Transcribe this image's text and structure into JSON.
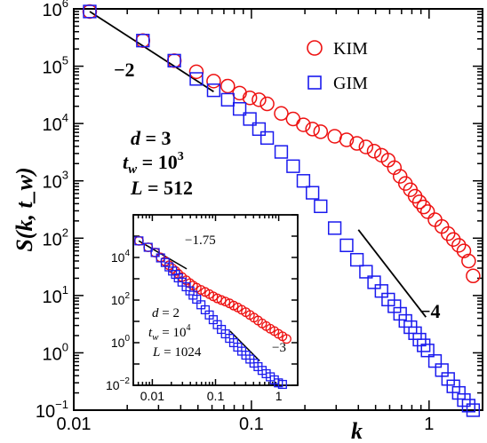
{
  "chart_data": [
    {
      "type": "scatter",
      "scale": "log-log",
      "xlabel": "k",
      "ylabel": "S(k, t_w)",
      "xlim": [
        0.01,
        2
      ],
      "ylim": [
        0.1,
        1000000
      ],
      "x_ticks": [
        "0.01",
        "0.1",
        "1"
      ],
      "y_ticks": [
        {
          "base": "10",
          "exp": "-1"
        },
        {
          "base": "10",
          "exp": "0"
        },
        {
          "base": "10",
          "exp": "1"
        },
        {
          "base": "10",
          "exp": "2"
        },
        {
          "base": "10",
          "exp": "3"
        },
        {
          "base": "10",
          "exp": "4"
        },
        {
          "base": "10",
          "exp": "5"
        },
        {
          "base": "10",
          "exp": "6"
        }
      ],
      "legend": {
        "placement": "top-right"
      },
      "params": [
        "d = 3",
        "t_w = 10^3",
        "L = 512"
      ],
      "params_display": [
        {
          "lhs": "d",
          "rhs": "3"
        },
        {
          "lhs": "t",
          "sub": "w",
          "rhs": "10",
          "sup": "3"
        },
        {
          "lhs": "L",
          "rhs": "512"
        }
      ],
      "series": [
        {
          "name": "KIM",
          "marker": "circle",
          "color": "#ee1111",
          "x": [
            0.0123,
            0.0245,
            0.0368,
            0.049,
            0.0613,
            0.0736,
            0.0858,
            0.098,
            0.1103,
            0.1226,
            0.1472,
            0.1717,
            0.1962,
            0.2208,
            0.2453,
            0.2943,
            0.3434,
            0.3925,
            0.4415,
            0.4906,
            0.5397,
            0.5888,
            0.6379,
            0.687,
            0.736,
            0.785,
            0.834,
            0.883,
            0.932,
            0.981,
            1.08,
            1.18,
            1.28,
            1.37,
            1.47,
            1.57,
            1.67,
            1.77
          ],
          "y": [
            900000,
            280000,
            125000,
            80000,
            55000,
            45000,
            34000,
            28000,
            26000,
            22000,
            15000,
            12000,
            9500,
            8000,
            7200,
            6000,
            5200,
            4500,
            3900,
            3300,
            2800,
            2300,
            1700,
            1200,
            900,
            700,
            540,
            430,
            350,
            290,
            210,
            160,
            120,
            95,
            75,
            60,
            40,
            22
          ]
        },
        {
          "name": "GIM",
          "marker": "square",
          "color": "#1a1aee",
          "x": [
            0.0123,
            0.0245,
            0.0368,
            0.049,
            0.0613,
            0.0736,
            0.0858,
            0.098,
            0.1103,
            0.1226,
            0.1472,
            0.1717,
            0.1962,
            0.2208,
            0.2453,
            0.2943,
            0.3434,
            0.3925,
            0.4415,
            0.4906,
            0.5397,
            0.5888,
            0.6379,
            0.687,
            0.736,
            0.785,
            0.834,
            0.883,
            0.932,
            0.981,
            1.08,
            1.18,
            1.28,
            1.37,
            1.47,
            1.57,
            1.67,
            1.77
          ],
          "y": [
            900000,
            280000,
            125000,
            60000,
            38000,
            26000,
            18000,
            12000,
            8000,
            5600,
            3200,
            1800,
            1000,
            620,
            360,
            150,
            75,
            42,
            26,
            17,
            12,
            8.5,
            6.5,
            4.8,
            3.6,
            2.8,
            2.2,
            1.7,
            1.35,
            1.1,
            0.72,
            0.5,
            0.35,
            0.26,
            0.2,
            0.15,
            0.12,
            0.1
          ]
        }
      ],
      "reference_lines": [
        {
          "label": "−2",
          "slope": -2,
          "x": [
            0.0123,
            0.0613
          ],
          "y": [
            900000,
            36000
          ]
        },
        {
          "label": "−4",
          "slope": -4,
          "x": [
            0.4,
            0.96
          ],
          "y": [
            140,
            4.2
          ]
        }
      ]
    },
    {
      "type": "scatter",
      "scale": "log-log",
      "position_description": "inset, lower-left",
      "xlim": [
        0.005,
        2
      ],
      "ylim": [
        0.01,
        1000000
      ],
      "x_ticks": [
        "0.01",
        "0.1",
        "1"
      ],
      "y_ticks": [
        {
          "base": "10",
          "exp": "-2"
        },
        {
          "base": "10",
          "exp": "0"
        },
        {
          "base": "10",
          "exp": "2"
        },
        {
          "base": "10",
          "exp": "4"
        }
      ],
      "params": [
        "d = 2",
        "t_w = 10^4",
        "L = 1024"
      ],
      "params_display": [
        {
          "lhs": "d",
          "rhs": "2"
        },
        {
          "lhs": "t",
          "sub": "w",
          "rhs": "10",
          "sup": "4"
        },
        {
          "lhs": "L",
          "rhs": "1024"
        }
      ],
      "series": [
        {
          "name": "KIM",
          "marker": "circle",
          "color": "#ee1111",
          "x": [
            0.00614,
            0.0086,
            0.0111,
            0.0135,
            0.016,
            0.0184,
            0.0209,
            0.0233,
            0.0258,
            0.0295,
            0.0344,
            0.0393,
            0.0442,
            0.0503,
            0.0589,
            0.0687,
            0.0798,
            0.092,
            0.1069,
            0.1239,
            0.1436,
            0.1669,
            0.1939,
            0.2246,
            0.2602,
            0.3019,
            0.3509,
            0.4062,
            0.4713,
            0.5473,
            0.6347,
            0.7363,
            0.8538,
            0.9898,
            1.1479,
            1.3318
          ],
          "y": [
            60000,
            30000,
            17000,
            10000,
            6500,
            4300,
            3000,
            2300,
            1700,
            1200,
            850,
            620,
            480,
            380,
            300,
            240,
            190,
            150,
            120,
            100,
            85,
            70,
            55,
            45,
            35,
            27,
            20,
            15,
            11,
            8,
            6,
            4.5,
            3.5,
            2.6,
            2.0,
            1.5
          ]
        },
        {
          "name": "GIM",
          "marker": "square",
          "color": "#1a1aee",
          "x": [
            0.00614,
            0.0086,
            0.0111,
            0.0135,
            0.016,
            0.0184,
            0.0209,
            0.0233,
            0.0258,
            0.0295,
            0.0344,
            0.0393,
            0.0442,
            0.0503,
            0.0589,
            0.0687,
            0.0798,
            0.092,
            0.1069,
            0.1239,
            0.1436,
            0.1669,
            0.1939,
            0.2246,
            0.2602,
            0.3019,
            0.3509,
            0.4062,
            0.4713,
            0.5473,
            0.6347,
            0.7363,
            0.8538,
            0.9898,
            1.1479
          ],
          "y": [
            60000,
            30000,
            17000,
            9500,
            5800,
            3600,
            2300,
            1600,
            1100,
            700,
            420,
            270,
            170,
            110,
            60,
            35,
            20,
            12,
            7,
            4.2,
            2.6,
            1.6,
            1.0,
            0.62,
            0.4,
            0.26,
            0.17,
            0.11,
            0.075,
            0.05,
            0.035,
            0.025,
            0.018,
            0.013,
            0.011
          ]
        }
      ],
      "reference_lines": [
        {
          "label": "−1.75",
          "slope": -1.75,
          "x": [
            0.0061,
            0.035
          ],
          "y": [
            60000,
            2900
          ]
        },
        {
          "label": "−3",
          "slope": -3,
          "x": [
            0.17,
            0.5
          ],
          "y": [
            3.5,
            0.14
          ]
        }
      ]
    }
  ]
}
